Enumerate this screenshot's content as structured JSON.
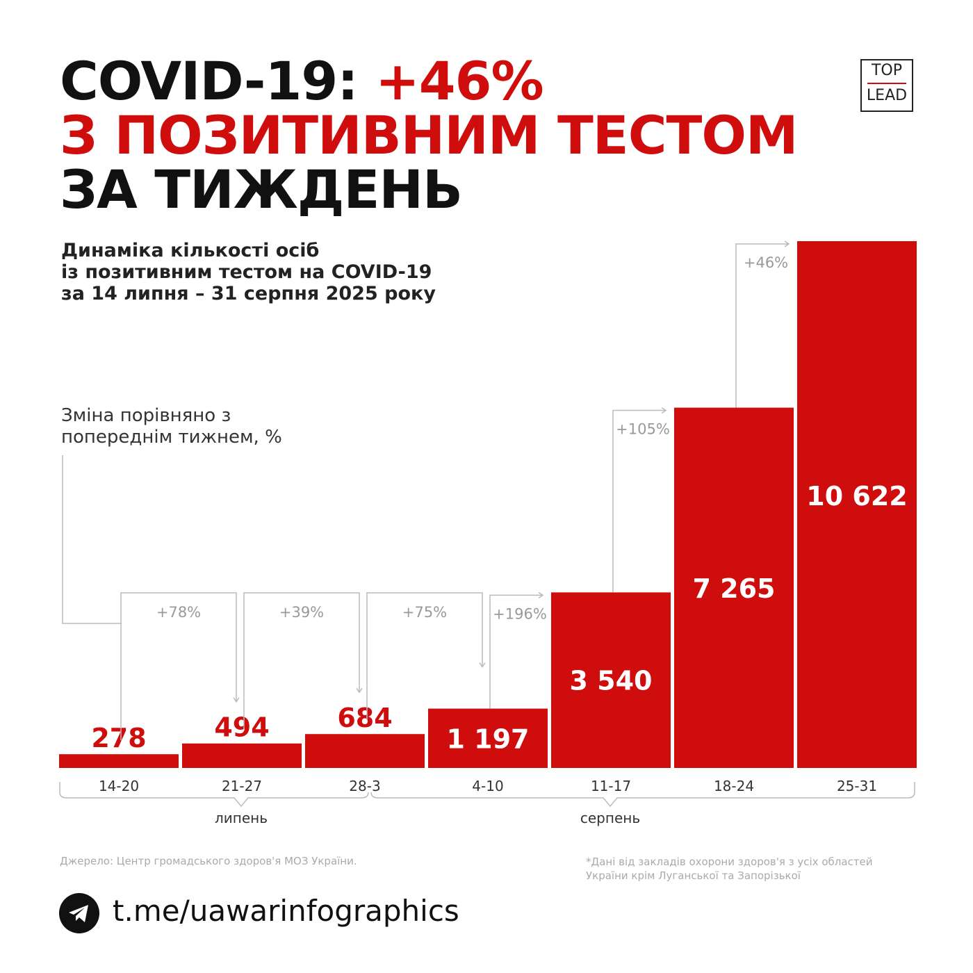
{
  "title": {
    "line1_prefix": "COVID-19: ",
    "line1_highlight": "+46%",
    "line2": "З ПОЗИТИВНИМ ТЕСТОМ",
    "line3": "ЗА ТИЖДЕНЬ"
  },
  "logo": {
    "top": "TOP",
    "bottom": "LEAD"
  },
  "subtitle": [
    "Динаміка кількості осіб",
    "із позитивним тестом на COVID-19",
    "за 14 липня – 31 серпня 2025 року"
  ],
  "change_note": [
    "Зміна порівняно з",
    "попереднім тижнем, %"
  ],
  "colors": {
    "bar": "#d00d0d",
    "text": "#111111",
    "connector": "#bbbbbb"
  },
  "chart_data": {
    "type": "bar",
    "categories": [
      "14-20",
      "21-27",
      "28-3",
      "4-10",
      "11-17",
      "18-24",
      "25-31"
    ],
    "values": [
      278,
      494,
      684,
      1197,
      3540,
      7265,
      10622
    ],
    "value_labels": [
      "278",
      "494",
      "684",
      "1 197",
      "3 540",
      "7 265",
      "10 622"
    ],
    "changes": [
      "+78%",
      "+39%",
      "+75%",
      "+196%",
      "+105%",
      "+46%"
    ],
    "months": [
      {
        "label": "липень"
      },
      {
        "label": "серпень"
      }
    ],
    "ylim": [
      0,
      10622
    ]
  },
  "footer": {
    "source": "Джерело: Центр громадського здоров'я МОЗ України.",
    "footnote": [
      "*Дані від закладів охорони здоров'я з усіх областей",
      "України крім Луганської та Запорізької"
    ],
    "telegram": "t.me/uawarinfographics"
  }
}
